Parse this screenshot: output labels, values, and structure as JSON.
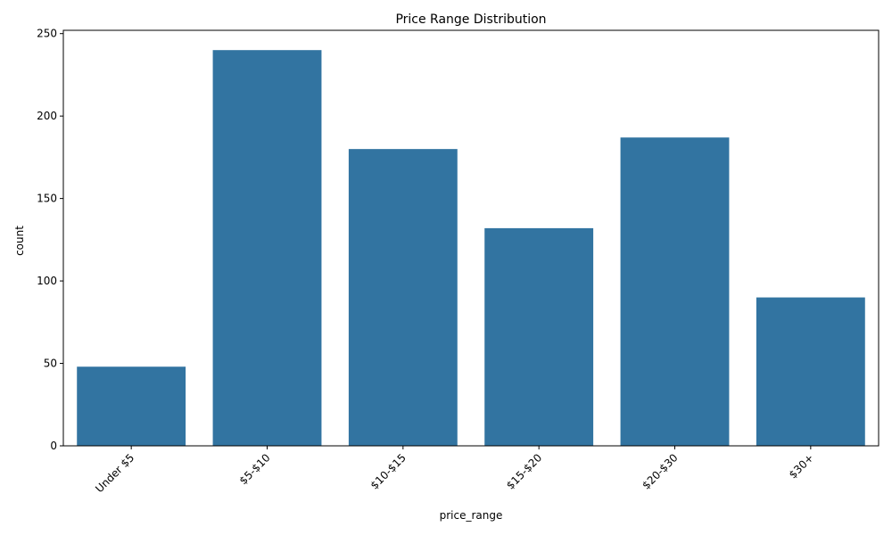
{
  "chart_data": {
    "type": "bar",
    "title": "Price Range Distribution",
    "xlabel": "price_range",
    "ylabel": "count",
    "categories": [
      "Under $5",
      "$5-$10",
      "$10-$15",
      "$15-$20",
      "$20-$30",
      "$30+"
    ],
    "values": [
      48,
      240,
      180,
      132,
      187,
      90
    ],
    "ylim": [
      0,
      252
    ],
    "yticks": [
      0,
      50,
      100,
      150,
      200,
      250
    ],
    "xtick_rotation_deg": 45,
    "grid": false,
    "legend": "none",
    "bar_color": "#3274a1"
  }
}
